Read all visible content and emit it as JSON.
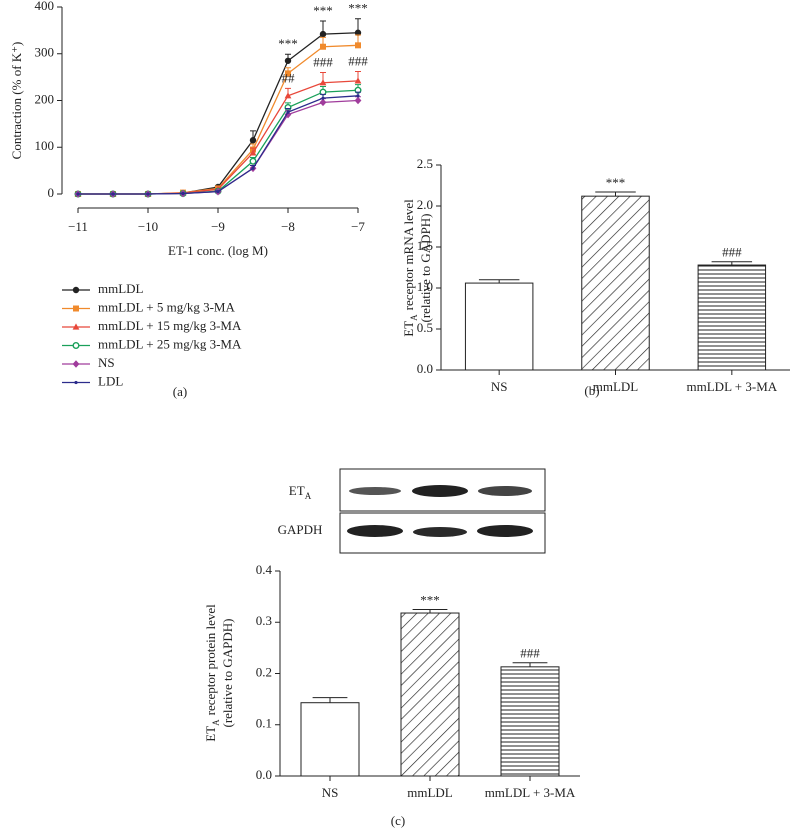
{
  "chart_data": [
    {
      "type": "line",
      "panel_label": "(a)",
      "xlabel": "ET-1 conc. (log M)",
      "ylabel": "Contraction (% of K⁺)",
      "x": [
        -11,
        -10.5,
        -10,
        -9.5,
        -9,
        -8.5,
        -8,
        -7.5,
        -7
      ],
      "xlim": [
        -11,
        -7
      ],
      "xticks": [
        {
          "value": -11,
          "label": "−11"
        },
        {
          "value": -10,
          "label": "−10"
        },
        {
          "value": -9,
          "label": "−9"
        },
        {
          "value": -8,
          "label": "−8"
        },
        {
          "value": -7,
          "label": "−7"
        }
      ],
      "ylim": [
        0,
        400
      ],
      "yticks": [
        0,
        100,
        200,
        300,
        400
      ],
      "series": [
        {
          "name": "mmLDL",
          "color": "#222222",
          "marker": "circle",
          "values": [
            0,
            0,
            0,
            2,
            15,
            115,
            285,
            342,
            345
          ],
          "errors": [
            0,
            0,
            0,
            1,
            3,
            20,
            14,
            28,
            30
          ],
          "annotations": [
            null,
            null,
            null,
            null,
            null,
            null,
            "***",
            "***",
            "***"
          ]
        },
        {
          "name": "mmLDL + 5 mg/kg 3-MA",
          "color": "#f08a2c",
          "marker": "square",
          "values": [
            0,
            0,
            0,
            3,
            12,
            95,
            258,
            315,
            318
          ],
          "errors": [
            0,
            0,
            0,
            1,
            3,
            12,
            12,
            20,
            22
          ],
          "annotations": [
            null,
            null,
            null,
            null,
            null,
            null,
            null,
            null,
            null
          ]
        },
        {
          "name": "mmLDL + 15 mg/kg 3-MA",
          "color": "#e8483a",
          "marker": "triangle",
          "values": [
            0,
            0,
            0,
            2,
            10,
            88,
            210,
            238,
            242
          ],
          "errors": [
            0,
            0,
            0,
            1,
            2,
            10,
            16,
            22,
            20
          ],
          "annotations": [
            null,
            null,
            null,
            null,
            null,
            null,
            "##",
            "###",
            "###"
          ]
        },
        {
          "name": "mmLDL + 25 mg/kg 3-MA",
          "color": "#1aa05a",
          "marker": "circle-open",
          "values": [
            0,
            0,
            0,
            1,
            6,
            70,
            185,
            218,
            222
          ],
          "errors": [
            0,
            0,
            0,
            1,
            2,
            8,
            10,
            12,
            12
          ]
        },
        {
          "name": "NS",
          "color": "#a03c9c",
          "marker": "diamond",
          "values": [
            0,
            0,
            0,
            1,
            5,
            55,
            170,
            196,
            200
          ],
          "errors": [
            0,
            0,
            0,
            1,
            2,
            6,
            8,
            8,
            8
          ]
        },
        {
          "name": "LDL",
          "color": "#2c2c8c",
          "marker": "dot",
          "values": [
            0,
            0,
            0,
            1,
            5,
            55,
            175,
            205,
            210
          ],
          "errors": [
            0,
            0,
            0,
            1,
            2,
            6,
            8,
            8,
            8
          ]
        }
      ]
    },
    {
      "type": "bar",
      "panel_label": "(b)",
      "ylabel": [
        "ET",
        "A",
        "receptor mRNA level",
        "(relative to GADPH)"
      ],
      "categories": [
        "NS",
        "mmLDL",
        "mmLDL + 3-MA"
      ],
      "values": [
        1.06,
        2.12,
        1.28
      ],
      "errors": [
        0.04,
        0.05,
        0.04
      ],
      "patterns": [
        "none",
        "diagonal",
        "horizontal"
      ],
      "annotations": [
        null,
        "***",
        "###"
      ],
      "ylim": [
        0,
        2.5
      ],
      "yticks": [
        {
          "value": 0,
          "label": "0.0"
        },
        0.5,
        {
          "value": 1,
          "label": "1.0"
        },
        1.5,
        {
          "value": 2,
          "label": "2.0"
        },
        2.5
      ]
    },
    {
      "type": "bar",
      "panel_label": "(c)",
      "ylabel": [
        "ET",
        "A",
        "receptor protein level",
        "(relative to GAPDH)"
      ],
      "blots": [
        {
          "label": "ET",
          "label_sub": "A"
        },
        {
          "label": "GAPDH"
        }
      ],
      "categories": [
        "NS",
        "mmLDL",
        "mmLDL + 3-MA"
      ],
      "values": [
        0.143,
        0.318,
        0.213
      ],
      "errors": [
        0.01,
        0.007,
        0.008
      ],
      "patterns": [
        "none",
        "diagonal",
        "horizontal"
      ],
      "annotations": [
        null,
        "***",
        "###"
      ],
      "ylim": [
        0,
        0.4
      ],
      "yticks": [
        {
          "value": 0,
          "label": "0.0"
        },
        0.1,
        0.2,
        0.3,
        0.4
      ]
    }
  ]
}
